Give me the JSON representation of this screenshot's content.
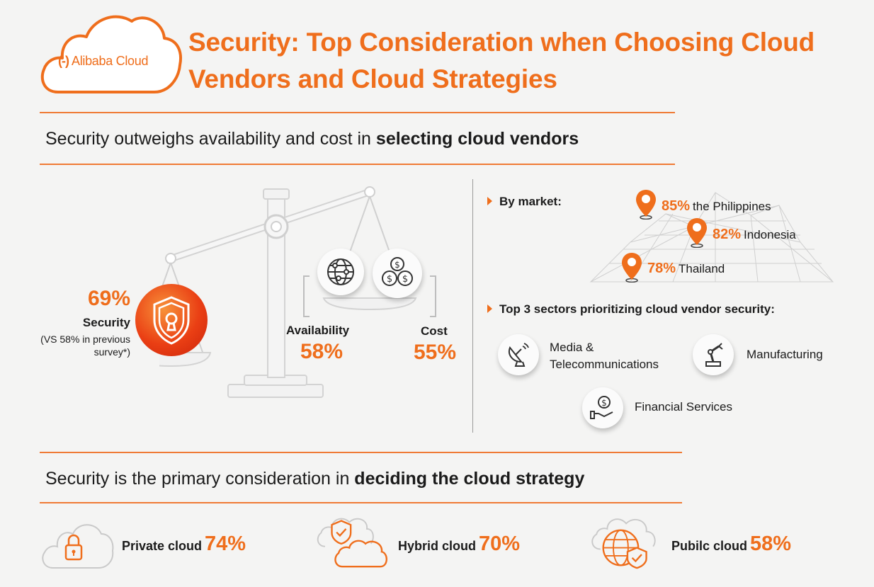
{
  "brand": {
    "logo_text": "Alibaba Cloud",
    "accent_color": "#ef6e1c"
  },
  "title": "Security: Top Consideration when Choosing Cloud Vendors and Cloud Strategies",
  "section1": {
    "heading_plain": "Security outweighs availability and cost in ",
    "heading_bold": "selecting cloud vendors",
    "scale": {
      "security": {
        "pct": "69%",
        "label": "Security",
        "note": "(VS 58% in previous survey*)",
        "icon": "shield-keyhole-icon"
      },
      "availability": {
        "label": "Availability",
        "pct": "58%",
        "icon": "globe-network-icon"
      },
      "cost": {
        "label": "Cost",
        "pct": "55%",
        "icon": "coins-dollar-icon"
      }
    },
    "by_market": {
      "heading": "By market:",
      "markets": [
        {
          "pct": "85%",
          "name": "the Philippines"
        },
        {
          "pct": "82%",
          "name": "Indonesia"
        },
        {
          "pct": "78%",
          "name": "Thailand"
        }
      ]
    },
    "sectors": {
      "heading": "Top 3 sectors prioritizing cloud vendor security:",
      "items": [
        {
          "label_line1": "Media &",
          "label_line2": "Telecommunications",
          "icon": "satellite-dish-icon"
        },
        {
          "label": "Manufacturing",
          "icon": "robot-arm-icon"
        },
        {
          "label": "Financial Services",
          "icon": "hand-coin-icon"
        }
      ]
    }
  },
  "section2": {
    "heading_plain": "Security is the primary consideration in ",
    "heading_bold": "deciding the cloud strategy",
    "clouds": [
      {
        "label": "Private cloud",
        "pct": "74%",
        "icon": "cloud-lock-icon"
      },
      {
        "label": "Hybrid cloud",
        "pct": "70%",
        "icon": "cloud-shield-icon"
      },
      {
        "label": "Pubilc cloud",
        "pct": "58%",
        "icon": "globe-shield-icon"
      }
    ]
  }
}
